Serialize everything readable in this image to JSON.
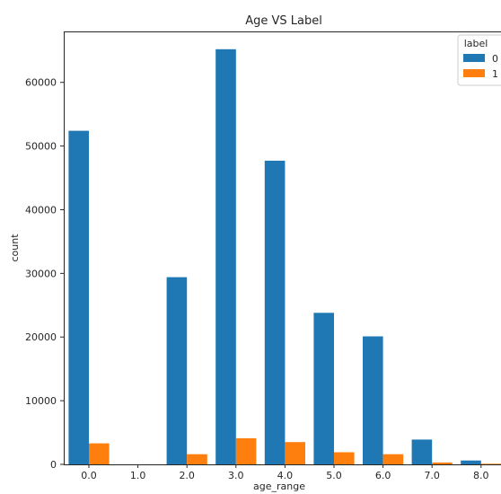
{
  "chart_data": {
    "type": "bar",
    "title": "Age VS Label",
    "xlabel": "age_range",
    "ylabel": "count",
    "categories": [
      "0.0",
      "1.0",
      "2.0",
      "3.0",
      "4.0",
      "5.0",
      "6.0",
      "7.0",
      "8.0"
    ],
    "series": [
      {
        "name": "0",
        "color": "#1f77b4",
        "values": [
          52400,
          0,
          29400,
          65200,
          47700,
          23800,
          20100,
          3900,
          600
        ]
      },
      {
        "name": "1",
        "color": "#ff7f0e",
        "values": [
          3300,
          0,
          1600,
          4100,
          3500,
          1900,
          1600,
          300,
          100
        ]
      }
    ],
    "ylim": [
      0,
      68000
    ],
    "yticks": [
      "0",
      "10000",
      "20000",
      "30000",
      "40000",
      "50000",
      "60000"
    ],
    "legend": {
      "title": "label",
      "placement": "top-right"
    },
    "grid": false
  }
}
